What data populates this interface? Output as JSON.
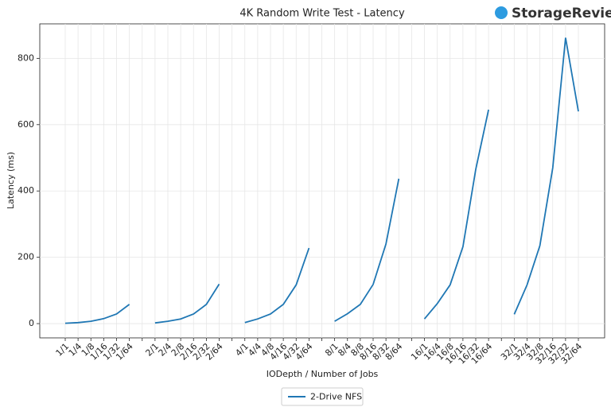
{
  "logo": "StorageReview",
  "chart_data": {
    "type": "line",
    "title": "4K Random Write Test - Latency",
    "x_label": "IODepth / Number of Jobs",
    "y_label": "Latency (ms)",
    "categories": [
      "1/1",
      "1/4",
      "1/8",
      "1/16",
      "1/32",
      "1/64",
      null,
      "2/1",
      "2/4",
      "2/8",
      "2/16",
      "2/32",
      "2/64",
      null,
      "4/1",
      "4/4",
      "4/8",
      "4/16",
      "4/32",
      "4/64",
      null,
      "8/1",
      "8/4",
      "8/8",
      "8/16",
      "8/32",
      "8/64",
      null,
      "16/1",
      "16/4",
      "16/8",
      "16/16",
      "16/32",
      "16/64",
      null,
      "32/1",
      "32/4",
      "32/8",
      "32/16",
      "32/32",
      "32/64"
    ],
    "series": [
      {
        "name": "2-Drive NFS",
        "color": "#1f77b4",
        "values": [
          1,
          3,
          7,
          15,
          29,
          58,
          null,
          2,
          7,
          14,
          29,
          58,
          119,
          null,
          3,
          14,
          29,
          58,
          117,
          228,
          null,
          7,
          30,
          58,
          118,
          240,
          437,
          null,
          14,
          60,
          117,
          232,
          465,
          645,
          null,
          28,
          117,
          235,
          470,
          862,
          640
        ]
      }
    ],
    "ylim": [
      -43,
      904
    ],
    "yticks": [
      0,
      200,
      400,
      600,
      800
    ],
    "grid": true,
    "legend": "bottom"
  }
}
